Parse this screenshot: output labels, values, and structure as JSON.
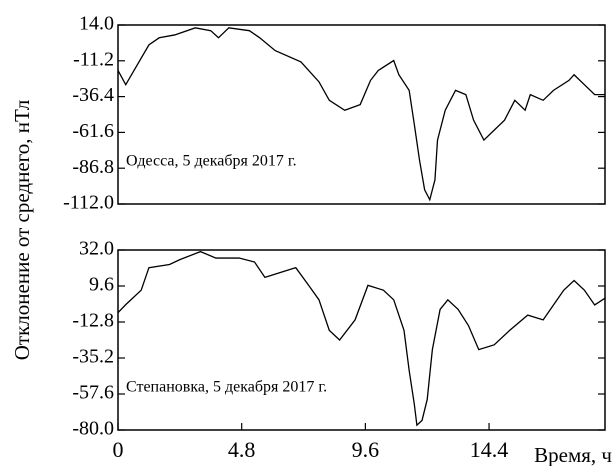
{
  "chart_data": [
    {
      "type": "line",
      "annotation": "Одесса, 5 декабря 2017 г.",
      "ylabel": "Отклонение от среднего, нТл",
      "x": [
        0,
        0.3,
        1.2,
        1.6,
        2.2,
        3.0,
        3.6,
        3.9,
        4.3,
        5.1,
        5.5,
        6.1,
        7.1,
        7.8,
        8.2,
        8.8,
        9.4,
        9.8,
        10.1,
        10.7,
        10.9,
        11.3,
        11.5,
        11.7,
        11.9,
        12.1,
        12.3,
        12.4,
        12.7,
        13.1,
        13.5,
        13.8,
        14.2,
        14.6,
        15.0,
        15.4,
        15.8,
        16.0,
        16.5,
        16.9,
        17.5,
        17.7,
        18.1,
        18.5,
        18.9
      ],
      "series": [
        {
          "color": "#000000",
          "values": [
            -18,
            -28,
            0,
            5,
            7,
            12,
            10,
            5,
            12,
            10,
            5,
            -4,
            -12,
            -26,
            -39,
            -46,
            -42,
            -25,
            -18,
            -11,
            -21,
            -32,
            -56,
            -81,
            -102,
            -109,
            -95,
            -67,
            -46,
            -32,
            -35,
            -53,
            -67,
            -60,
            -53,
            -39,
            -46,
            -35,
            -39,
            -32,
            -25,
            -21,
            -28,
            -35,
            -35
          ]
        }
      ],
      "xlim": [
        0,
        18.9
      ],
      "ylim": [
        -112,
        14
      ],
      "yticks": [
        {
          "value": 14,
          "label": "14.0"
        },
        -11.2,
        -36.4,
        -61.6,
        -86.8,
        {
          "value": -112,
          "label": "-112.0"
        }
      ]
    },
    {
      "type": "line",
      "annotation": "Степановка, 5 декабря 2017 г.",
      "xlabel": "Время, ч",
      "x": [
        0,
        0.3,
        0.9,
        1.2,
        2.0,
        2.4,
        3.2,
        3.8,
        4.7,
        5.3,
        5.7,
        6.3,
        6.9,
        7.4,
        7.8,
        8.2,
        8.6,
        9.2,
        9.7,
        10.3,
        10.7,
        11.1,
        11.3,
        11.5,
        11.6,
        11.8,
        12.0,
        12.2,
        12.5,
        12.8,
        13.2,
        13.6,
        14.0,
        14.6,
        15.2,
        15.9,
        16.5,
        16.9,
        17.3,
        17.7,
        18.1,
        18.5,
        18.9
      ],
      "series": [
        {
          "color": "#000000",
          "values": [
            -7,
            -2,
            7,
            21,
            23,
            26,
            31,
            27,
            27,
            24.5,
            15,
            18,
            21,
            10,
            1,
            -18,
            -24,
            -11.5,
            10,
            7,
            1,
            -18,
            -43,
            -64,
            -77,
            -74,
            -61,
            -30,
            -5,
            1,
            -5,
            -15,
            -30,
            -27,
            -18,
            -8.5,
            -11.5,
            -2.2,
            7,
            13,
            7,
            -2.2,
            2
          ]
        }
      ],
      "xlim": [
        0,
        18.9
      ],
      "xticks": [
        0,
        4.8,
        9.6,
        14.4
      ],
      "ylim": [
        -80,
        32
      ],
      "yticks": [
        {
          "value": 32,
          "label": "32.0"
        },
        9.6,
        -12.8,
        -35.2,
        -57.6,
        {
          "value": -80,
          "label": "-80.0"
        }
      ]
    }
  ]
}
